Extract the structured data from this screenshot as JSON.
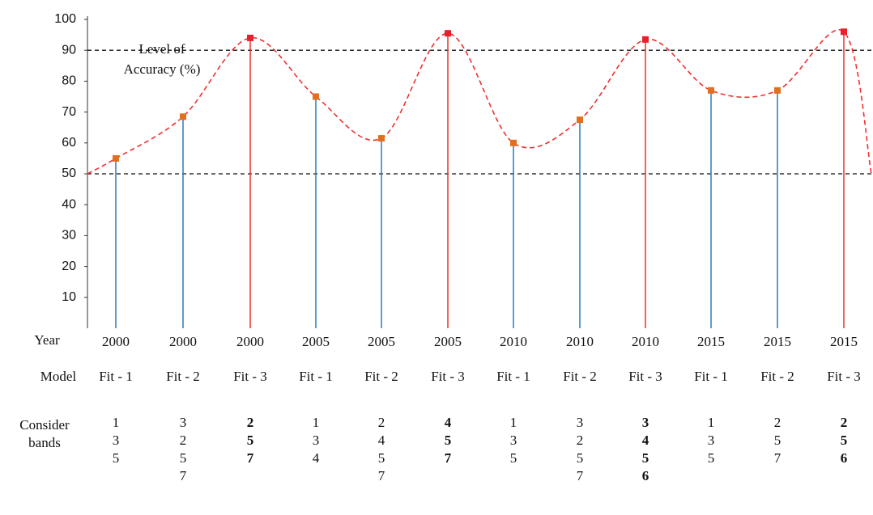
{
  "chart_data": {
    "type": "stem",
    "row_labels": {
      "year": "Year",
      "model": "Model",
      "bands": [
        "Consider",
        "bands"
      ]
    },
    "categories": [
      "2000",
      "2000",
      "2000",
      "2005",
      "2005",
      "2005",
      "2010",
      "2010",
      "2010",
      "2015",
      "2015",
      "2015"
    ],
    "models": [
      "Fit - 1",
      "Fit - 2",
      "Fit - 3",
      "Fit - 1",
      "Fit - 2",
      "Fit - 3",
      "Fit - 1",
      "Fit - 2",
      "Fit - 3",
      "Fit - 1",
      "Fit - 2",
      "Fit - 3"
    ],
    "bands": [
      [
        "1",
        "3",
        "5"
      ],
      [
        "3",
        "2",
        "5",
        "7"
      ],
      [
        "2",
        "5",
        "7"
      ],
      [
        "1",
        "3",
        "4"
      ],
      [
        "2",
        "4",
        "5",
        "7"
      ],
      [
        "4",
        "5",
        "7"
      ],
      [
        "1",
        "3",
        "5"
      ],
      [
        "3",
        "2",
        "5",
        "7"
      ],
      [
        "3",
        "4",
        "5",
        "6"
      ],
      [
        "1",
        "3",
        "5"
      ],
      [
        "2",
        "5",
        "7"
      ],
      [
        "2",
        "5",
        "6"
      ]
    ],
    "bold": [
      false,
      false,
      true,
      false,
      false,
      true,
      false,
      false,
      true,
      false,
      false,
      true
    ],
    "values": [
      55,
      68.5,
      94,
      75,
      61.5,
      95.5,
      60,
      67.5,
      93.5,
      77,
      77,
      96
    ],
    "colors": [
      "#2b7bb9",
      "#2b7bb9",
      "#e8302b",
      "#2b7bb9",
      "#2b7bb9",
      "#e8302b",
      "#2b7bb9",
      "#2b7bb9",
      "#e8302b",
      "#2b7bb9",
      "#2b7bb9",
      "#e8302b"
    ],
    "marker_colors": [
      "#e07020",
      "#e07020",
      "#e8202b",
      "#e07020",
      "#e07020",
      "#e8202b",
      "#e07020",
      "#e07020",
      "#e8202b",
      "#e07020",
      "#e07020",
      "#e8202b"
    ],
    "curve_ends": [
      50,
      50
    ],
    "curve_color": "#f03030",
    "reference_lines": [
      90,
      50
    ],
    "annotation": [
      "Level of",
      "Accuracy (%)"
    ],
    "ylim": [
      0,
      100
    ],
    "yticks": [
      10,
      20,
      30,
      40,
      50,
      60,
      70,
      80,
      90,
      100
    ]
  }
}
